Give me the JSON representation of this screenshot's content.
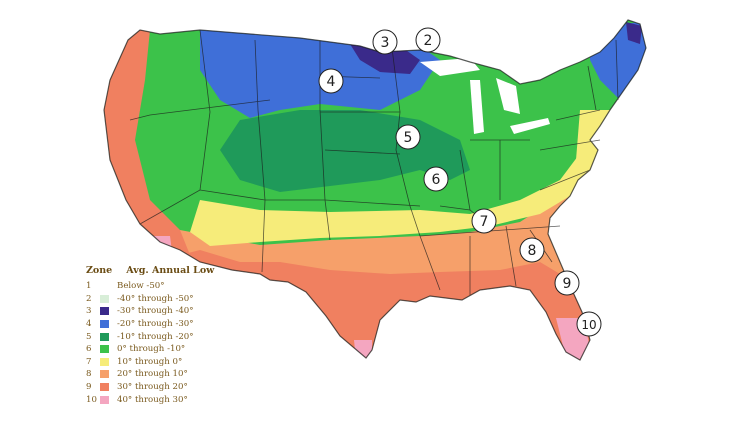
{
  "legend": {
    "header_zone": "Zone",
    "header_low": "Avg. Annual Low",
    "rows": [
      {
        "zone": "1",
        "text": "Below -50°",
        "color": "#ffffff"
      },
      {
        "zone": "2",
        "text": "-40° through -50°",
        "color": "#d8eed8"
      },
      {
        "zone": "3",
        "text": "-30° through -40°",
        "color": "#3a2a8a"
      },
      {
        "zone": "4",
        "text": "-20° through -30°",
        "color": "#3f6fd8"
      },
      {
        "zone": "5",
        "text": "-10° through -20°",
        "color": "#1f9a5a"
      },
      {
        "zone": "6",
        "text": "0° through -10°",
        "color": "#3cc24a"
      },
      {
        "zone": "7",
        "text": "10° through 0°",
        "color": "#f6ec7a"
      },
      {
        "zone": "8",
        "text": "20° through 10°",
        "color": "#f6a06a"
      },
      {
        "zone": "9",
        "text": "30° through 20°",
        "color": "#f08060"
      },
      {
        "zone": "10",
        "text": "40° through 30°",
        "color": "#f4a6c0"
      }
    ]
  },
  "markers": [
    {
      "label": "3"
    },
    {
      "label": "2"
    },
    {
      "label": "4"
    },
    {
      "label": "5"
    },
    {
      "label": "6"
    },
    {
      "label": "7"
    },
    {
      "label": "8"
    },
    {
      "label": "9"
    },
    {
      "label": "10"
    }
  ]
}
